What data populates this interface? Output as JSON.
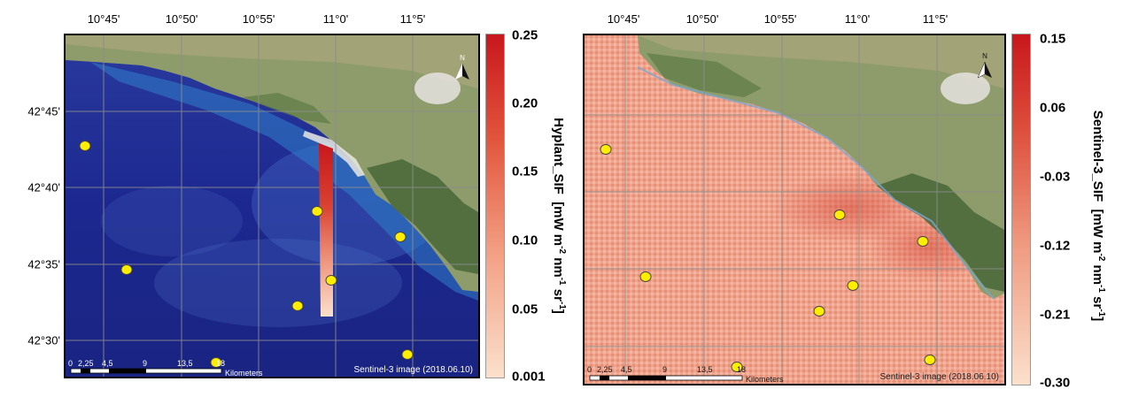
{
  "left_map": {
    "lon_ticks": [
      "10°45'",
      "10°50'",
      "10°55'",
      "11°0'",
      "11°5'"
    ],
    "lat_ticks": [
      "42°45'",
      "42°40'",
      "42°35'",
      "42°30'"
    ],
    "caption": "Sentinel-3 image (2018.06.10)",
    "scalebar": {
      "ticks": [
        "0",
        "2,25",
        "4,5",
        "9",
        "13,5",
        "18"
      ],
      "unit": "Kilometers"
    },
    "north_label": "N",
    "colorbar": {
      "title_main": "Hyplant_SIF",
      "unit_prefix": "[mW m",
      "unit_exp1": "-2",
      "unit_mid1": " nm",
      "unit_exp2": "-1",
      "unit_mid2": " sr",
      "unit_exp3": "-1",
      "unit_suffix": "]",
      "ticks": [
        "0.25",
        "0.20",
        "0.15",
        "0.10",
        "0.05",
        "0.001"
      ],
      "color_top": "#c8171d",
      "color_bottom": "#fbe0cc"
    }
  },
  "right_map": {
    "lon_ticks": [
      "10°45'",
      "10°50'",
      "10°55'",
      "11°0'",
      "11°5'"
    ],
    "caption": "Sentinel-3 image (2018.06.10)",
    "scalebar": {
      "ticks": [
        "0",
        "2,25",
        "4,5",
        "9",
        "13,5",
        "18"
      ],
      "unit": "Kilometers"
    },
    "north_label": "N",
    "colorbar": {
      "title_main": "Sentinel-3_SIF",
      "unit_prefix": "[mW m",
      "unit_exp1": "-2",
      "unit_mid1": " nm",
      "unit_exp2": "-1",
      "unit_mid2": " sr",
      "unit_exp3": "-1",
      "unit_suffix": "]",
      "ticks": [
        "0.15",
        "0.06",
        "-0.03",
        "-0.12",
        "-0.21",
        "-0.30"
      ],
      "color_top": "#c8171d",
      "color_bottom": "#fbe0cc"
    }
  },
  "colors": {
    "sea": "#1d2a8e",
    "land": "#8a9a6a",
    "sif_field": "#eaa08c",
    "sample_point": "#ffee00"
  }
}
